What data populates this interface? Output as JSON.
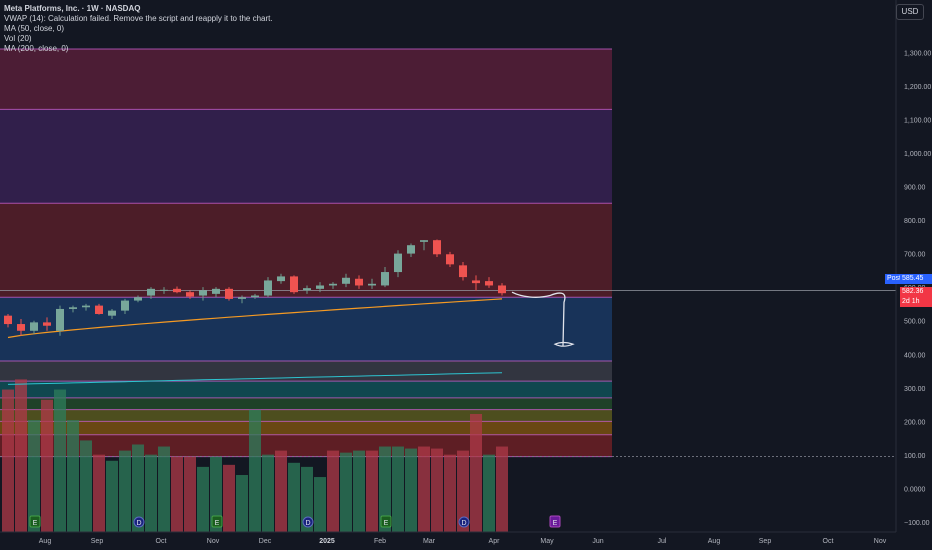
{
  "legend": {
    "title": "Meta Platforms, Inc. · 1W · NASDAQ",
    "vwap": "VWAP (14): Calculation failed. Remove the script and reapply it to the chart.",
    "ma50": "MA (50, close, 0)",
    "vol": "Vol (20)",
    "ma200": "MA (200, close, 0)"
  },
  "currency_button": "USD",
  "price_tags": {
    "post_label": "Post",
    "post_price": "585.45",
    "close_price": "582.36",
    "countdown": "2d 1h"
  },
  "colors": {
    "background": "#131722",
    "up": "#26a69a",
    "down": "#ef5350",
    "ma50": "#f59a23",
    "ma200": "#2dc4d0",
    "drawing": "#e0e3eb"
  },
  "chart_data": {
    "type": "candlestick",
    "y_axis": {
      "ticks": [
        "1,300.00",
        "1,200.00",
        "1,100.00",
        "1,000.00",
        "900.00",
        "800.00",
        "700.00",
        "600.00",
        "500.00",
        "400.00",
        "300.00",
        "200.00",
        "100.00",
        "0.0000",
        "−100.00"
      ],
      "range": [
        -120,
        1340
      ]
    },
    "x_axis": {
      "ticks": [
        "Aug",
        "Sep",
        "Oct",
        "Nov",
        "Dec",
        "2025",
        "Feb",
        "Mar",
        "Apr",
        "May",
        "Jun",
        "Jul",
        "Aug",
        "Sep",
        "Oct",
        "Nov"
      ],
      "bold": [
        "2025"
      ]
    },
    "zones": [
      {
        "from": 1130,
        "to": 1310,
        "color": "#9c2752"
      },
      {
        "from": 850,
        "to": 1130,
        "color": "#5b2a86"
      },
      {
        "from": 570,
        "to": 850,
        "color": "#9a2632"
      },
      {
        "from": 380,
        "to": 570,
        "color": "#1e5aa8"
      },
      {
        "from": 320,
        "to": 380,
        "color": "#5d606b"
      },
      {
        "from": 270,
        "to": 320,
        "color": "#0c8a8f"
      },
      {
        "from": 235,
        "to": 270,
        "color": "#2e7d32"
      },
      {
        "from": 200,
        "to": 235,
        "color": "#9e9a1a"
      },
      {
        "from": 160,
        "to": 200,
        "color": "#e08a00"
      },
      {
        "from": 95,
        "to": 160,
        "color": "#c62828"
      }
    ],
    "zone_lines": [
      1310,
      1130,
      850,
      570,
      380,
      320,
      270,
      235,
      200,
      160,
      95
    ],
    "candles": [
      {
        "date": "2024-07-19",
        "o": 515,
        "h": 520,
        "l": 480,
        "c": 490
      },
      {
        "date": "2024-07-26",
        "o": 490,
        "h": 505,
        "l": 455,
        "c": 470
      },
      {
        "date": "2024-08-02",
        "o": 470,
        "h": 500,
        "l": 460,
        "c": 495
      },
      {
        "date": "2024-08-09",
        "o": 495,
        "h": 510,
        "l": 470,
        "c": 485
      },
      {
        "date": "2024-08-16",
        "o": 470,
        "h": 545,
        "l": 455,
        "c": 535
      },
      {
        "date": "2024-08-23",
        "o": 535,
        "h": 545,
        "l": 525,
        "c": 540
      },
      {
        "date": "2024-08-30",
        "o": 540,
        "h": 550,
        "l": 530,
        "c": 545
      },
      {
        "date": "2024-09-06",
        "o": 545,
        "h": 550,
        "l": 518,
        "c": 520
      },
      {
        "date": "2024-09-13",
        "o": 515,
        "h": 535,
        "l": 505,
        "c": 530
      },
      {
        "date": "2024-09-20",
        "o": 530,
        "h": 565,
        "l": 520,
        "c": 560
      },
      {
        "date": "2024-09-27",
        "o": 560,
        "h": 575,
        "l": 555,
        "c": 570
      },
      {
        "date": "2024-10-04",
        "o": 575,
        "h": 600,
        "l": 565,
        "c": 595
      },
      {
        "date": "2024-10-11",
        "o": 590,
        "h": 600,
        "l": 580,
        "c": 592
      },
      {
        "date": "2024-10-18",
        "o": 595,
        "h": 602,
        "l": 582,
        "c": 585
      },
      {
        "date": "2024-10-25",
        "o": 585,
        "h": 590,
        "l": 565,
        "c": 572
      },
      {
        "date": "2024-11-01",
        "o": 575,
        "h": 600,
        "l": 560,
        "c": 590
      },
      {
        "date": "2024-11-08",
        "o": 580,
        "h": 600,
        "l": 570,
        "c": 595
      },
      {
        "date": "2024-11-15",
        "o": 595,
        "h": 600,
        "l": 560,
        "c": 565
      },
      {
        "date": "2024-11-22",
        "o": 565,
        "h": 575,
        "l": 552,
        "c": 570
      },
      {
        "date": "2024-11-29",
        "o": 570,
        "h": 580,
        "l": 565,
        "c": 575
      },
      {
        "date": "2024-12-06",
        "o": 575,
        "h": 630,
        "l": 570,
        "c": 620
      },
      {
        "date": "2024-12-13",
        "o": 618,
        "h": 640,
        "l": 610,
        "c": 632
      },
      {
        "date": "2024-12-20",
        "o": 632,
        "h": 635,
        "l": 580,
        "c": 585
      },
      {
        "date": "2024-12-27",
        "o": 590,
        "h": 605,
        "l": 580,
        "c": 597
      },
      {
        "date": "2025-01-03",
        "o": 595,
        "h": 615,
        "l": 585,
        "c": 605
      },
      {
        "date": "2025-01-10",
        "o": 605,
        "h": 615,
        "l": 595,
        "c": 610
      },
      {
        "date": "2025-01-17",
        "o": 610,
        "h": 640,
        "l": 600,
        "c": 628
      },
      {
        "date": "2025-01-24",
        "o": 625,
        "h": 635,
        "l": 595,
        "c": 605
      },
      {
        "date": "2025-01-31",
        "o": 605,
        "h": 625,
        "l": 595,
        "c": 610
      },
      {
        "date": "2025-02-07",
        "o": 605,
        "h": 660,
        "l": 600,
        "c": 645
      },
      {
        "date": "2025-02-14",
        "o": 645,
        "h": 710,
        "l": 630,
        "c": 700
      },
      {
        "date": "2025-02-21",
        "o": 700,
        "h": 730,
        "l": 690,
        "c": 725
      },
      {
        "date": "2025-02-28",
        "o": 735,
        "h": 740,
        "l": 710,
        "c": 740
      },
      {
        "date": "2025-03-07",
        "o": 740,
        "h": 742,
        "l": 690,
        "c": 698
      },
      {
        "date": "2025-03-14",
        "o": 698,
        "h": 705,
        "l": 660,
        "c": 668
      },
      {
        "date": "2025-03-21",
        "o": 665,
        "h": 675,
        "l": 620,
        "c": 630
      },
      {
        "date": "2025-03-28",
        "o": 620,
        "h": 635,
        "l": 590,
        "c": 612
      },
      {
        "date": "2025-04-04",
        "o": 618,
        "h": 630,
        "l": 598,
        "c": 605
      },
      {
        "date": "2025-04-11",
        "o": 605,
        "h": 612,
        "l": 575,
        "c": 582
      }
    ],
    "volume": [
      70,
      75,
      55,
      65,
      70,
      55,
      45,
      38,
      35,
      40,
      43,
      38,
      42,
      37,
      37,
      32,
      37,
      33,
      28,
      60,
      38,
      40,
      34,
      32,
      27,
      40,
      39,
      40,
      40,
      42,
      42,
      41,
      42,
      41,
      38,
      40,
      58,
      38,
      42
    ],
    "volume_up": [
      false,
      false,
      true,
      false,
      true,
      true,
      true,
      false,
      true,
      true,
      true,
      true,
      true,
      false,
      false,
      true,
      true,
      false,
      true,
      true,
      true,
      false,
      true,
      true,
      true,
      false,
      true,
      true,
      false,
      true,
      true,
      true,
      false,
      false,
      false,
      false,
      false,
      true,
      false
    ],
    "ma50_ends": {
      "start": 450,
      "end": 565
    },
    "ma200_ends": {
      "start": 310,
      "end": 345
    },
    "event_markers": [
      {
        "letter": "E",
        "week": 2,
        "color": "#1b5e20"
      },
      {
        "letter": "D",
        "week": 10,
        "color": "#1a237e"
      },
      {
        "letter": "E",
        "week": 16,
        "color": "#1b5e20"
      },
      {
        "letter": "D",
        "week": 23,
        "color": "#1a237e"
      },
      {
        "letter": "E",
        "week": 29,
        "color": "#1b5e20"
      },
      {
        "letter": "D",
        "week": 35,
        "color": "#1a237e"
      },
      {
        "letter": "E",
        "week": 42,
        "color": "#6a1b9a"
      }
    ],
    "last_price": 582.36,
    "grid": false
  }
}
